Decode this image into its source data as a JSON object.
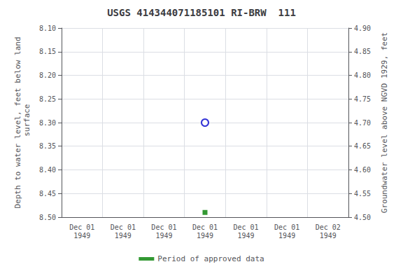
{
  "chart_data": {
    "type": "scatter",
    "title": "USGS 414344071185101 RI-BRW  111",
    "xlabel": null,
    "ylabel": "Depth to water level, feet below land\n surface",
    "y2label": "Groundwater level above NGVD 1929, feet",
    "categories": [
      "Dec 01\n1949",
      "Dec 01\n1949",
      "Dec 01\n1949",
      "Dec 01\n1949",
      "Dec 01\n1949",
      "Dec 01\n1949",
      "Dec 02\n1949"
    ],
    "series": [
      {
        "color": "#0000cc",
        "marker": "circle",
        "values": [
          null,
          null,
          null,
          8.3,
          null,
          null,
          null
        ]
      },
      {
        "name": "Period of approved data",
        "color": "#008000",
        "marker": "square",
        "values": [
          null,
          null,
          null,
          8.49,
          null,
          null,
          null
        ]
      }
    ],
    "ylim": [
      8.5,
      8.1
    ],
    "yticks": [
      {
        "value": 8.1,
        "label": "8.10"
      },
      8.15,
      {
        "value": 8.2,
        "label": "8.20"
      },
      8.25,
      {
        "value": 8.3,
        "label": "8.30"
      },
      8.35,
      {
        "value": 8.4,
        "label": "8.40"
      },
      8.45,
      {
        "value": 8.5,
        "label": "8.50"
      }
    ],
    "y2lim": [
      4.5,
      4.9
    ],
    "y2ticks": [
      {
        "value": 4.9,
        "label": "4.90"
      },
      4.85,
      {
        "value": 4.8,
        "label": "4.80"
      },
      4.75,
      {
        "value": 4.7,
        "label": "4.70"
      },
      4.65,
      {
        "value": 4.6,
        "label": "4.60"
      },
      4.55,
      {
        "value": 4.5,
        "label": "4.50"
      }
    ],
    "grid": true,
    "legend": "bottom"
  }
}
